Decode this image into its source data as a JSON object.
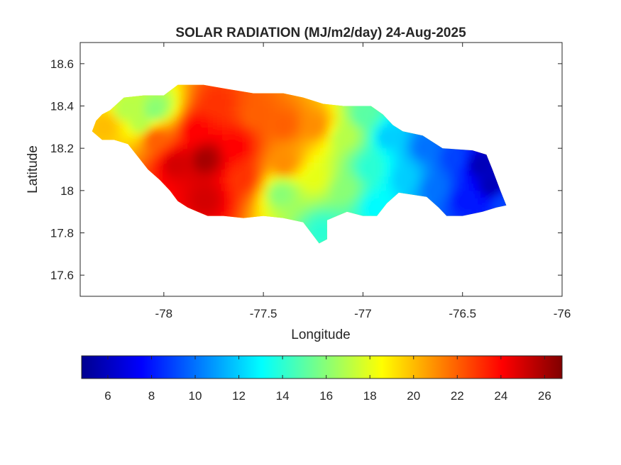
{
  "chart_data": {
    "type": "heatmap",
    "title": "SOLAR RADIATION (MJ/m2/day) 24-Aug-2025",
    "xlabel": "Longitude",
    "ylabel": "Latitude",
    "xlim": [
      -78.42,
      -76.0
    ],
    "ylim": [
      17.5,
      18.7
    ],
    "xticks": [
      -78,
      -77.5,
      -77,
      -76.5,
      -76
    ],
    "yticks": [
      17.6,
      17.8,
      18,
      18.2,
      18.4,
      18.6
    ],
    "colormap": "jet",
    "colorbar": {
      "location": "south",
      "limits": [
        4.8,
        26.8
      ],
      "ticks": [
        6,
        8,
        10,
        12,
        14,
        16,
        18,
        20,
        22,
        24,
        26
      ]
    },
    "region_outline": [
      [
        -78.36,
        18.28
      ],
      [
        -78.34,
        18.33
      ],
      [
        -78.31,
        18.36
      ],
      [
        -78.27,
        18.38
      ],
      [
        -78.2,
        18.44
      ],
      [
        -78.1,
        18.45
      ],
      [
        -78.0,
        18.45
      ],
      [
        -77.93,
        18.5
      ],
      [
        -77.8,
        18.5
      ],
      [
        -77.68,
        18.48
      ],
      [
        -77.55,
        18.46
      ],
      [
        -77.4,
        18.46
      ],
      [
        -77.3,
        18.44
      ],
      [
        -77.2,
        18.41
      ],
      [
        -77.1,
        18.4
      ],
      [
        -76.96,
        18.4
      ],
      [
        -76.9,
        18.36
      ],
      [
        -76.85,
        18.31
      ],
      [
        -76.8,
        18.28
      ],
      [
        -76.7,
        18.26
      ],
      [
        -76.6,
        18.2
      ],
      [
        -76.45,
        18.19
      ],
      [
        -76.38,
        18.17
      ],
      [
        -76.35,
        18.1
      ],
      [
        -76.31,
        18.0
      ],
      [
        -76.28,
        17.93
      ],
      [
        -76.33,
        17.92
      ],
      [
        -76.4,
        17.9
      ],
      [
        -76.5,
        17.88
      ],
      [
        -76.58,
        17.88
      ],
      [
        -76.62,
        17.92
      ],
      [
        -76.68,
        17.97
      ],
      [
        -76.75,
        17.98
      ],
      [
        -76.82,
        17.99
      ],
      [
        -76.88,
        17.94
      ],
      [
        -76.93,
        17.88
      ],
      [
        -77.0,
        17.88
      ],
      [
        -77.08,
        17.9
      ],
      [
        -77.13,
        17.88
      ],
      [
        -77.18,
        17.86
      ],
      [
        -77.18,
        17.77
      ],
      [
        -77.22,
        17.75
      ],
      [
        -77.26,
        17.8
      ],
      [
        -77.3,
        17.85
      ],
      [
        -77.4,
        17.87
      ],
      [
        -77.5,
        17.88
      ],
      [
        -77.6,
        17.87
      ],
      [
        -77.7,
        17.88
      ],
      [
        -77.78,
        17.88
      ],
      [
        -77.83,
        17.9
      ],
      [
        -77.88,
        17.92
      ],
      [
        -77.93,
        17.95
      ],
      [
        -77.97,
        18.0
      ],
      [
        -78.02,
        18.05
      ],
      [
        -78.08,
        18.1
      ],
      [
        -78.13,
        18.16
      ],
      [
        -78.18,
        18.22
      ],
      [
        -78.25,
        18.24
      ],
      [
        -78.31,
        18.24
      ],
      [
        -78.36,
        18.28
      ]
    ],
    "value_anchors": [
      {
        "lon": -78.3,
        "lat": 18.3,
        "value": 20
      },
      {
        "lon": -78.2,
        "lat": 18.38,
        "value": 17
      },
      {
        "lon": -78.12,
        "lat": 18.32,
        "value": 17
      },
      {
        "lon": -78.05,
        "lat": 18.38,
        "value": 16
      },
      {
        "lon": -78.05,
        "lat": 18.24,
        "value": 22
      },
      {
        "lon": -77.95,
        "lat": 18.12,
        "value": 25
      },
      {
        "lon": -77.8,
        "lat": 18.14,
        "value": 26
      },
      {
        "lon": -77.85,
        "lat": 18.28,
        "value": 24
      },
      {
        "lon": -77.75,
        "lat": 18.4,
        "value": 23
      },
      {
        "lon": -77.8,
        "lat": 17.95,
        "value": 25
      },
      {
        "lon": -77.65,
        "lat": 18.2,
        "value": 24
      },
      {
        "lon": -77.62,
        "lat": 18.05,
        "value": 23
      },
      {
        "lon": -77.55,
        "lat": 18.35,
        "value": 22
      },
      {
        "lon": -77.4,
        "lat": 18.3,
        "value": 22
      },
      {
        "lon": -77.4,
        "lat": 18.12,
        "value": 21
      },
      {
        "lon": -77.42,
        "lat": 17.98,
        "value": 16
      },
      {
        "lon": -77.25,
        "lat": 18.05,
        "value": 18
      },
      {
        "lon": -77.25,
        "lat": 18.3,
        "value": 21
      },
      {
        "lon": -77.22,
        "lat": 17.8,
        "value": 14
      },
      {
        "lon": -77.1,
        "lat": 18.25,
        "value": 17
      },
      {
        "lon": -77.1,
        "lat": 18.0,
        "value": 16
      },
      {
        "lon": -77.0,
        "lat": 18.35,
        "value": 15
      },
      {
        "lon": -76.98,
        "lat": 18.1,
        "value": 14
      },
      {
        "lon": -76.95,
        "lat": 17.92,
        "value": 13
      },
      {
        "lon": -76.88,
        "lat": 18.25,
        "value": 12
      },
      {
        "lon": -76.8,
        "lat": 18.05,
        "value": 12
      },
      {
        "lon": -76.7,
        "lat": 18.2,
        "value": 10
      },
      {
        "lon": -76.65,
        "lat": 18.0,
        "value": 10
      },
      {
        "lon": -76.55,
        "lat": 18.15,
        "value": 9
      },
      {
        "lon": -76.5,
        "lat": 17.95,
        "value": 8
      },
      {
        "lon": -76.42,
        "lat": 18.12,
        "value": 6
      },
      {
        "lon": -76.36,
        "lat": 18.02,
        "value": 6
      },
      {
        "lon": -76.3,
        "lat": 17.93,
        "value": 9
      }
    ]
  }
}
